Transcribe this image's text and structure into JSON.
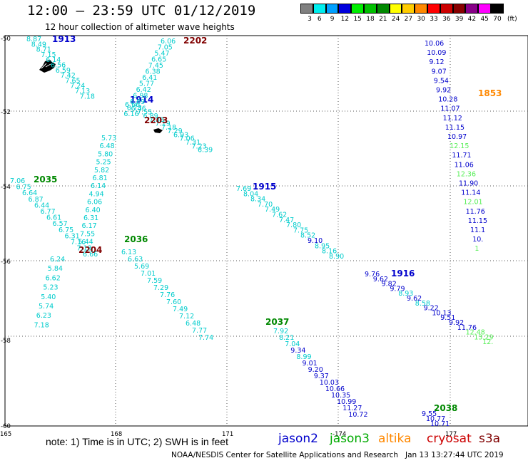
{
  "header": {
    "title": "12:00 – 23:59 UTC 01/12/2019",
    "subtitle": "12 hour collection of altimeter wave heights"
  },
  "legend": {
    "unit": "(ft)",
    "bins": [
      {
        "label": "3",
        "color": "#808080"
      },
      {
        "label": "6",
        "color": "#00eeee"
      },
      {
        "label": "9",
        "color": "#00a0ff"
      },
      {
        "label": "12",
        "color": "#0000dd"
      },
      {
        "label": "15",
        "color": "#00ee00"
      },
      {
        "label": "18",
        "color": "#00c000"
      },
      {
        "label": "21",
        "color": "#008800"
      },
      {
        "label": "24",
        "color": "#ffff00"
      },
      {
        "label": "27",
        "color": "#ffcc00"
      },
      {
        "label": "30",
        "color": "#ff8800"
      },
      {
        "label": "33",
        "color": "#ff0000"
      },
      {
        "label": "36",
        "color": "#cc0000"
      },
      {
        "label": "39",
        "color": "#880000"
      },
      {
        "label": "42",
        "color": "#880088"
      },
      {
        "label": "45",
        "color": "#ff00ff"
      },
      {
        "label": "70",
        "color": "#000000"
      }
    ]
  },
  "axes": {
    "lat_labels": [
      "-50",
      "-52",
      "-54",
      "-56",
      "-58",
      "-60"
    ],
    "lon_labels": [
      "165",
      "168",
      "171",
      "-174",
      "177"
    ]
  },
  "colors": {
    "jason2": "#0000cc",
    "jason3": "#008800",
    "altika": "#ff8800",
    "cryosat": "#cc0000",
    "s3a": "#800000",
    "cyan": "#00cccc",
    "lightgreen": "#55ee55"
  },
  "tracks": [
    {
      "sat": "jason2",
      "label": "1913",
      "label_color": "#0000cc",
      "points": [
        {
          "v": "8.87",
          "c": "#00cccc"
        },
        {
          "v": "8.49",
          "c": "#00cccc"
        },
        {
          "v": "8.71",
          "c": "#00cccc"
        },
        {
          "v": "7.15",
          "c": "#00cccc"
        },
        {
          "v": "6.14",
          "c": "#00cccc"
        },
        {
          "v": "6.56",
          "c": "#00cccc"
        },
        {
          "v": "6.59",
          "c": "#00cccc"
        },
        {
          "v": "7.42",
          "c": "#00cccc"
        },
        {
          "v": "7.65",
          "c": "#00cccc"
        },
        {
          "v": "7.24",
          "c": "#00cccc"
        },
        {
          "v": "7.13",
          "c": "#00cccc"
        },
        {
          "v": "7.18",
          "c": "#00cccc"
        }
      ]
    },
    {
      "sat": "jason2",
      "label": "1914",
      "label_color": "#0000cc",
      "points": [
        {
          "v": "6.66",
          "c": "#00cccc"
        },
        {
          "v": "6.46",
          "c": "#00cccc"
        },
        {
          "v": "7.55",
          "c": "#00cccc"
        },
        {
          "v": "6.89",
          "c": "#00cccc"
        },
        {
          "v": "7.33",
          "c": "#00cccc"
        },
        {
          "v": "7.19",
          "c": "#00cccc"
        },
        {
          "v": "7.18",
          "c": "#00cccc"
        },
        {
          "v": "7.29",
          "c": "#00cccc"
        },
        {
          "v": "6.93",
          "c": "#00cccc"
        },
        {
          "v": "7.06",
          "c": "#00cccc"
        },
        {
          "v": "7.31",
          "c": "#00cccc"
        },
        {
          "v": "7.23",
          "c": "#00cccc"
        },
        {
          "v": "6.39",
          "c": "#00cccc"
        }
      ]
    },
    {
      "sat": "jason2",
      "label": "1915",
      "label_color": "#0000cc",
      "points": [
        {
          "v": "7.69",
          "c": "#00cccc"
        },
        {
          "v": "8.04",
          "c": "#00cccc"
        },
        {
          "v": "8.34",
          "c": "#00cccc"
        },
        {
          "v": "7.70",
          "c": "#00cccc"
        },
        {
          "v": "7.49",
          "c": "#00cccc"
        },
        {
          "v": "7.62",
          "c": "#00cccc"
        },
        {
          "v": "7.47",
          "c": "#00cccc"
        },
        {
          "v": "7.80",
          "c": "#00cccc"
        },
        {
          "v": "7.75",
          "c": "#00cccc"
        },
        {
          "v": "8.52",
          "c": "#00cccc"
        },
        {
          "v": "9.10",
          "c": "#0000cc"
        },
        {
          "v": "8.95",
          "c": "#00cccc"
        },
        {
          "v": "8.16",
          "c": "#00cccc"
        },
        {
          "v": "8.90",
          "c": "#00cccc"
        }
      ]
    },
    {
      "sat": "jason2",
      "label": "1916",
      "label_color": "#0000cc",
      "points": [
        {
          "v": "9.76",
          "c": "#0000cc"
        },
        {
          "v": "9.62",
          "c": "#0000cc"
        },
        {
          "v": "9.82",
          "c": "#0000cc"
        },
        {
          "v": "9.79",
          "c": "#0000cc"
        },
        {
          "v": "8.93",
          "c": "#00cccc"
        },
        {
          "v": "9.62",
          "c": "#0000cc"
        },
        {
          "v": "8.58",
          "c": "#00cccc"
        },
        {
          "v": "9.22",
          "c": "#0000cc"
        },
        {
          "v": "10.13",
          "c": "#0000cc"
        },
        {
          "v": "9.51",
          "c": "#0000cc"
        },
        {
          "v": "9.92",
          "c": "#0000cc"
        },
        {
          "v": "11.76",
          "c": "#0000cc"
        },
        {
          "v": "12.48",
          "c": "#55ee55"
        },
        {
          "v": "13.29",
          "c": "#55ee55"
        },
        {
          "v": "12.",
          "c": "#55ee55"
        }
      ]
    },
    {
      "sat": "s3a",
      "label": "2202",
      "label_color": "#800000",
      "points": [
        {
          "v": "6.06",
          "c": "#00cccc"
        },
        {
          "v": "7.05",
          "c": "#00cccc"
        },
        {
          "v": "5.47",
          "c": "#00cccc"
        },
        {
          "v": "6.65",
          "c": "#00cccc"
        },
        {
          "v": "7.45",
          "c": "#00cccc"
        },
        {
          "v": "6.38",
          "c": "#00cccc"
        },
        {
          "v": "6.41",
          "c": "#00cccc"
        },
        {
          "v": "5.77",
          "c": "#00cccc"
        },
        {
          "v": "6.42",
          "c": "#00cccc"
        },
        {
          "v": "6.98",
          "c": "#00cccc"
        },
        {
          "v": "6.69",
          "c": "#00cccc"
        },
        {
          "v": "6.73",
          "c": "#00cccc"
        },
        {
          "v": "6.16",
          "c": "#00cccc"
        }
      ]
    },
    {
      "sat": "s3a",
      "label": "2203",
      "label_color": "#800000",
      "points": [
        {
          "v": "5.73",
          "c": "#00cccc"
        },
        {
          "v": "6.48",
          "c": "#00cccc"
        },
        {
          "v": "5.80",
          "c": "#00cccc"
        },
        {
          "v": "5.25",
          "c": "#00cccc"
        },
        {
          "v": "5.82",
          "c": "#00cccc"
        },
        {
          "v": "6.81",
          "c": "#00cccc"
        },
        {
          "v": "6.14",
          "c": "#00cccc"
        },
        {
          "v": "4.94",
          "c": "#00cccc"
        },
        {
          "v": "6.06",
          "c": "#00cccc"
        },
        {
          "v": "6.40",
          "c": "#00cccc"
        },
        {
          "v": "6.31",
          "c": "#00cccc"
        },
        {
          "v": "6.17",
          "c": "#00cccc"
        },
        {
          "v": "7.55",
          "c": "#00cccc"
        },
        {
          "v": "5.44",
          "c": "#00cccc"
        }
      ]
    },
    {
      "sat": "s3a",
      "label": "2204",
      "label_color": "#800000",
      "points": [
        {
          "v": "6.24",
          "c": "#00cccc"
        },
        {
          "v": "5.84",
          "c": "#00cccc"
        },
        {
          "v": "6.62",
          "c": "#00cccc"
        },
        {
          "v": "5.23",
          "c": "#00cccc"
        },
        {
          "v": "5.40",
          "c": "#00cccc"
        },
        {
          "v": "5.74",
          "c": "#00cccc"
        },
        {
          "v": "6.23",
          "c": "#00cccc"
        },
        {
          "v": "7.18",
          "c": "#00cccc"
        }
      ]
    },
    {
      "sat": "jason3",
      "label": "2035",
      "label_color": "#008800",
      "points": [
        {
          "v": "7.06",
          "c": "#00cccc"
        },
        {
          "v": "6.75",
          "c": "#00cccc"
        },
        {
          "v": "6.64",
          "c": "#00cccc"
        },
        {
          "v": "6.87",
          "c": "#00cccc"
        },
        {
          "v": "6.44",
          "c": "#00cccc"
        },
        {
          "v": "6.77",
          "c": "#00cccc"
        },
        {
          "v": "6.61",
          "c": "#00cccc"
        },
        {
          "v": "6.57",
          "c": "#00cccc"
        },
        {
          "v": "6.75",
          "c": "#00cccc"
        },
        {
          "v": "6.31",
          "c": "#00cccc"
        },
        {
          "v": "7.16",
          "c": "#00cccc"
        },
        {
          "v": "7.13",
          "c": "#00cccc"
        },
        {
          "v": "6.66",
          "c": "#00cccc"
        }
      ]
    },
    {
      "sat": "jason3",
      "label": "2036",
      "label_color": "#008800",
      "points": [
        {
          "v": "6.13",
          "c": "#00cccc"
        },
        {
          "v": "6.63",
          "c": "#00cccc"
        },
        {
          "v": "5.69",
          "c": "#00cccc"
        },
        {
          "v": "7.01",
          "c": "#00cccc"
        },
        {
          "v": "7.59",
          "c": "#00cccc"
        },
        {
          "v": "7.29",
          "c": "#00cccc"
        },
        {
          "v": "7.76",
          "c": "#00cccc"
        },
        {
          "v": "7.60",
          "c": "#00cccc"
        },
        {
          "v": "7.49",
          "c": "#00cccc"
        },
        {
          "v": "7.12",
          "c": "#00cccc"
        },
        {
          "v": "6.48",
          "c": "#00cccc"
        },
        {
          "v": "7.77",
          "c": "#00cccc"
        },
        {
          "v": "7.74",
          "c": "#00cccc"
        }
      ]
    },
    {
      "sat": "jason3",
      "label": "2037",
      "label_color": "#008800",
      "points": [
        {
          "v": "7.92",
          "c": "#00cccc"
        },
        {
          "v": "8.21",
          "c": "#00cccc"
        },
        {
          "v": "7.04",
          "c": "#00cccc"
        },
        {
          "v": "9.34",
          "c": "#0000cc"
        },
        {
          "v": "8.99",
          "c": "#00cccc"
        },
        {
          "v": "9.01",
          "c": "#0000cc"
        },
        {
          "v": "9.20",
          "c": "#0000cc"
        },
        {
          "v": "9.37",
          "c": "#0000cc"
        },
        {
          "v": "10.03",
          "c": "#0000cc"
        },
        {
          "v": "10.66",
          "c": "#0000cc"
        },
        {
          "v": "10.35",
          "c": "#0000cc"
        },
        {
          "v": "10.99",
          "c": "#0000cc"
        },
        {
          "v": "11.27",
          "c": "#0000cc"
        },
        {
          "v": "10.72",
          "c": "#0000cc"
        }
      ]
    },
    {
      "sat": "jason3",
      "label": "2038",
      "label_color": "#008800",
      "points": [
        {
          "v": "9.55",
          "c": "#0000cc"
        },
        {
          "v": "10.77",
          "c": "#0000cc"
        },
        {
          "v": "10.71",
          "c": "#0000cc"
        }
      ]
    },
    {
      "sat": "altika",
      "label": "1853",
      "label_color": "#ff8800",
      "points": [
        {
          "v": "10.06",
          "c": "#0000cc"
        },
        {
          "v": "10.09",
          "c": "#0000cc"
        },
        {
          "v": "9.12",
          "c": "#0000cc"
        },
        {
          "v": "9.07",
          "c": "#0000cc"
        },
        {
          "v": "9.54",
          "c": "#0000cc"
        },
        {
          "v": "9.92",
          "c": "#0000cc"
        },
        {
          "v": "10.28",
          "c": "#0000cc"
        },
        {
          "v": "11.07",
          "c": "#0000cc"
        },
        {
          "v": "11.12",
          "c": "#0000cc"
        },
        {
          "v": "11.15",
          "c": "#0000cc"
        },
        {
          "v": "10.97",
          "c": "#0000cc"
        },
        {
          "v": "12.15",
          "c": "#55ee55"
        },
        {
          "v": "11.71",
          "c": "#0000cc"
        },
        {
          "v": "11.06",
          "c": "#0000cc"
        },
        {
          "v": "12.36",
          "c": "#55ee55"
        },
        {
          "v": "11.90",
          "c": "#0000cc"
        },
        {
          "v": "11.14",
          "c": "#0000cc"
        },
        {
          "v": "12.01",
          "c": "#55ee55"
        },
        {
          "v": "11.76",
          "c": "#0000cc"
        },
        {
          "v": "11.15",
          "c": "#0000cc"
        },
        {
          "v": "11.1",
          "c": "#0000cc"
        },
        {
          "v": "10.",
          "c": "#0000cc"
        },
        {
          "v": "1",
          "c": "#55ee55"
        }
      ]
    }
  ],
  "note": "note: 1) Time is in UTC; 2) SWH is in feet",
  "satellites": [
    {
      "name": "jason2",
      "color": "#0000cc"
    },
    {
      "name": "jason3",
      "color": "#00aa00"
    },
    {
      "name": "altika",
      "color": "#ff8800"
    },
    {
      "name": "cryosat",
      "color": "#cc0000"
    },
    {
      "name": "s3a",
      "color": "#800000"
    }
  ],
  "footer": {
    "credit": "NOAA/NESDIS Center for Satellite Applications and Research",
    "timestamp": "Jan 13 13:27:44 UTC 2019"
  }
}
